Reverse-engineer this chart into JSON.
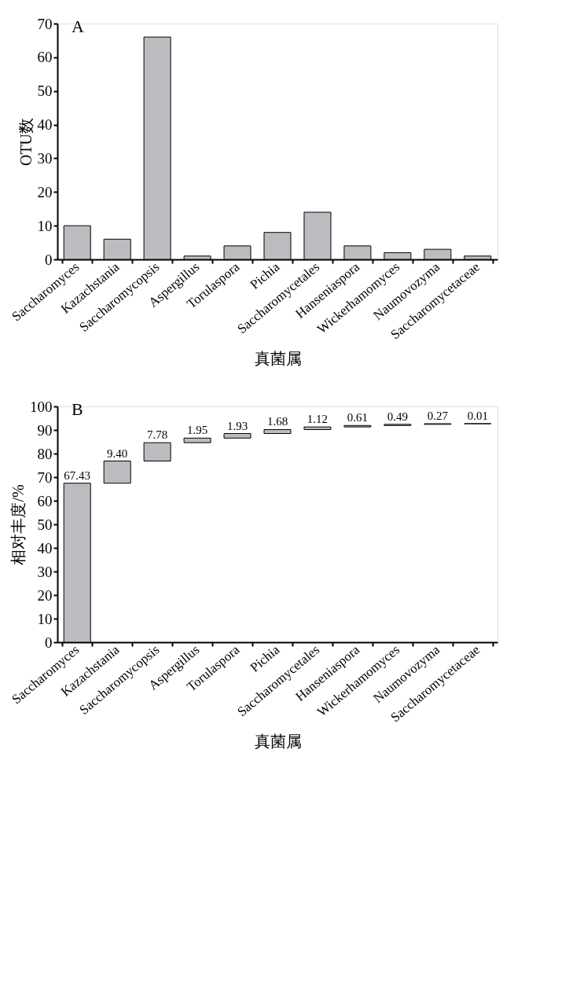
{
  "chart_data": [
    {
      "type": "bar",
      "title": "A",
      "xlabel": "真菌属",
      "ylabel": "OTU数",
      "categories": [
        "Saccharomyces",
        "Kazachstania",
        "Saccharomycopsis",
        "Aspergillus",
        "Torulaspora",
        "Pichia",
        "Saccharomycetales",
        "Hanseniaspora",
        "Wickerhamomyces",
        "Naumovozyma",
        "Saccharomycetaceae"
      ],
      "values": [
        10,
        6,
        66,
        1,
        4,
        8,
        14,
        4,
        2,
        3,
        1
      ],
      "color": "#bcbcc0",
      "ylim": [
        0,
        70
      ],
      "yticks": [
        0,
        10,
        20,
        30,
        40,
        50,
        60,
        70
      ],
      "grid": false
    },
    {
      "type": "bar",
      "title": "B",
      "xlabel": "真菌属",
      "ylabel": "相对丰度/%",
      "categories": [
        "Saccharomyces",
        "Kazachstania",
        "Saccharomycopsis",
        "Aspergillus",
        "Torulaspora",
        "Pichia",
        "Saccharomycetales",
        "Hanseniaspora",
        "Wickerhamomyces",
        "Naumovozyma",
        "Saccharomycetaceae"
      ],
      "values": [
        67.43,
        9.4,
        7.78,
        1.95,
        1.93,
        1.68,
        1.12,
        0.61,
        0.49,
        0.27,
        0.01
      ],
      "base": [
        0,
        67.43,
        76.83,
        84.61,
        86.56,
        88.49,
        90.17,
        91.29,
        91.9,
        92.39,
        92.66
      ],
      "value_labels": [
        "67.43",
        "9.40",
        "7.78",
        "1.95",
        "1.93",
        "1.68",
        "1.12",
        "0.61",
        "0.49",
        "0.27",
        "0.01"
      ],
      "color": "#bcbcc0",
      "ylim": [
        0,
        100
      ],
      "yticks": [
        0,
        10,
        20,
        30,
        40,
        50,
        60,
        70,
        80,
        90,
        100
      ],
      "grid": false
    }
  ]
}
